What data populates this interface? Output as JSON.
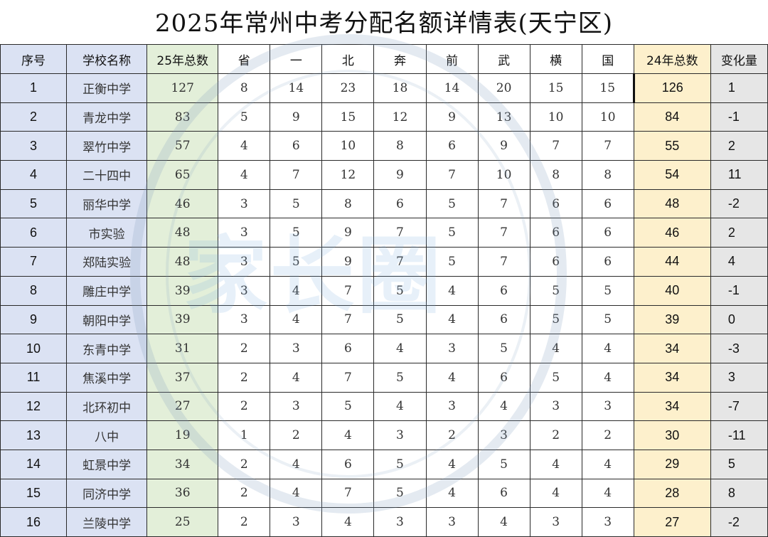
{
  "title": "2025年常州中考分配名额详情表(天宁区)",
  "watermark_text": "家长圈",
  "headers": [
    "序号",
    "学校名称",
    "25年总数",
    "省",
    "一",
    "北",
    "奔",
    "前",
    "武",
    "横",
    "国",
    "24年总数",
    "变化量"
  ],
  "rows": [
    [
      "1",
      "正衡中学",
      "127",
      "8",
      "14",
      "23",
      "18",
      "14",
      "20",
      "15",
      "15",
      "126",
      "1"
    ],
    [
      "2",
      "青龙中学",
      "83",
      "5",
      "9",
      "15",
      "12",
      "9",
      "13",
      "10",
      "10",
      "84",
      "-1"
    ],
    [
      "3",
      "翠竹中学",
      "57",
      "4",
      "6",
      "10",
      "8",
      "6",
      "9",
      "7",
      "7",
      "55",
      "2"
    ],
    [
      "4",
      "二十四中",
      "65",
      "4",
      "7",
      "12",
      "9",
      "7",
      "10",
      "8",
      "8",
      "54",
      "11"
    ],
    [
      "5",
      "丽华中学",
      "46",
      "3",
      "5",
      "8",
      "6",
      "5",
      "7",
      "6",
      "6",
      "48",
      "-2"
    ],
    [
      "6",
      "市实验",
      "48",
      "3",
      "5",
      "9",
      "7",
      "5",
      "7",
      "6",
      "6",
      "46",
      "2"
    ],
    [
      "7",
      "郑陆实验",
      "48",
      "3",
      "5",
      "9",
      "7",
      "5",
      "7",
      "6",
      "6",
      "44",
      "4"
    ],
    [
      "8",
      "雕庄中学",
      "39",
      "3",
      "4",
      "7",
      "5",
      "4",
      "6",
      "5",
      "5",
      "40",
      "-1"
    ],
    [
      "9",
      "朝阳中学",
      "39",
      "3",
      "4",
      "7",
      "5",
      "4",
      "6",
      "5",
      "5",
      "39",
      "0"
    ],
    [
      "10",
      "东青中学",
      "31",
      "2",
      "3",
      "6",
      "4",
      "3",
      "5",
      "4",
      "4",
      "34",
      "-3"
    ],
    [
      "11",
      "焦溪中学",
      "37",
      "2",
      "4",
      "7",
      "5",
      "4",
      "6",
      "5",
      "4",
      "34",
      "3"
    ],
    [
      "12",
      "北环初中",
      "27",
      "2",
      "3",
      "5",
      "4",
      "3",
      "4",
      "3",
      "3",
      "34",
      "-7"
    ],
    [
      "13",
      "八中",
      "19",
      "1",
      "2",
      "4",
      "3",
      "2",
      "3",
      "2",
      "2",
      "30",
      "-11"
    ],
    [
      "14",
      "虹景中学",
      "34",
      "2",
      "4",
      "6",
      "5",
      "4",
      "5",
      "4",
      "4",
      "29",
      "5"
    ],
    [
      "15",
      "同济中学",
      "36",
      "2",
      "4",
      "7",
      "5",
      "4",
      "6",
      "4",
      "4",
      "28",
      "8"
    ],
    [
      "16",
      "兰陵中学",
      "25",
      "2",
      "3",
      "4",
      "3",
      "3",
      "4",
      "3",
      "3",
      "27",
      "-2"
    ]
  ]
}
